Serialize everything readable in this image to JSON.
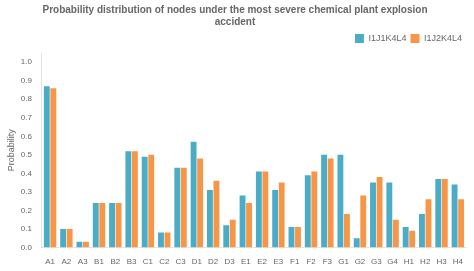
{
  "chart_data": {
    "type": "bar",
    "title": "Probability distribution of nodes under the most severe chemical plant explosion\naccident",
    "ylabel": "Probability",
    "categories": [
      "A1",
      "A2",
      "A3",
      "B1",
      "B2",
      "B3",
      "C1",
      "C2",
      "C3",
      "D1",
      "D2",
      "D3",
      "E1",
      "E2",
      "E3",
      "F1",
      "F2",
      "F3",
      "G1",
      "G2",
      "G3",
      "G4",
      "H1",
      "H2",
      "H3",
      "H4"
    ],
    "series": [
      {
        "name": "I1J1K4L4",
        "color": "#4bacc6",
        "values": [
          0.87,
          0.1,
          0.03,
          0.24,
          0.24,
          0.52,
          0.49,
          0.08,
          0.43,
          0.57,
          0.31,
          0.12,
          0.28,
          0.41,
          0.31,
          0.11,
          0.39,
          0.5,
          0.5,
          0.05,
          0.35,
          0.35,
          0.11,
          0.18,
          0.37,
          0.34
        ]
      },
      {
        "name": "I1J2K4L4",
        "color": "#f79646",
        "values": [
          0.86,
          0.1,
          0.03,
          0.24,
          0.24,
          0.52,
          0.5,
          0.08,
          0.43,
          0.48,
          0.36,
          0.15,
          0.24,
          0.41,
          0.35,
          0.11,
          0.41,
          0.48,
          0.18,
          0.28,
          0.38,
          0.15,
          0.09,
          0.26,
          0.37,
          0.26
        ]
      }
    ],
    "ylim": [
      0.0,
      1.05
    ],
    "yticks": [
      {
        "value": 0,
        "label": "0.0"
      },
      0.1,
      0.2,
      0.3,
      0.4,
      0.5,
      0.6,
      0.7,
      0.8,
      0.9,
      {
        "value": 1,
        "label": "1.0"
      }
    ],
    "grid": false,
    "legend": "upper right"
  }
}
